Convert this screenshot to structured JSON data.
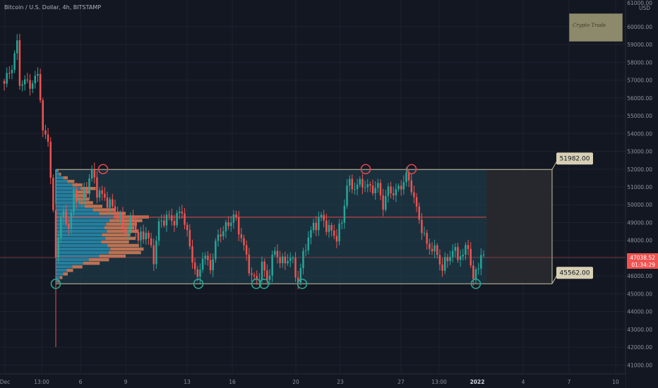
{
  "header": {
    "title": "Bitcoin / U.S. Dollar, 4h, BITSTAMP"
  },
  "logo": {
    "text": "Crypto Trade"
  },
  "colors": {
    "background": "#131722",
    "grid": "#1e2230",
    "up": "#26a69a",
    "down": "#ef5350",
    "range_box": "#c9c3a0",
    "range_fill": "#1f3a47",
    "poc_line": "#e04848",
    "circle_top": "#e0474c",
    "circle_bottom": "#2aa391",
    "price_badge": "#ef5350",
    "label_bg": "#d7d0b4",
    "axis_text": "#8e929e"
  },
  "price_axis": {
    "currency": "USD",
    "top_cut": "61000.00"
  },
  "current_price": {
    "price": "47038.52",
    "countdown": "01:34:29",
    "value": 47038.52
  },
  "range": {
    "high_label": "51982.00",
    "low_label": "45562.00",
    "high": 51982,
    "low": 45562
  },
  "chart_data": {
    "type": "candlestick",
    "ylim": [
      40500,
      61500
    ],
    "y_ticks": [
      41000,
      42000,
      43000,
      44000,
      45000,
      46000,
      47000,
      48000,
      49000,
      50000,
      51000,
      52000,
      53000,
      54000,
      55000,
      56000,
      57000,
      58000,
      59000,
      60000
    ],
    "y_tick_labels": [
      "41000.00",
      "42000.00",
      "43000.00",
      "44000.00",
      "45000.00",
      "46000.00",
      "47000.00",
      "48000.00",
      "49000.00",
      "50000.00",
      "51000.00",
      "52000.00",
      "53000.00",
      "54000.00",
      "55000.00",
      "56000.00",
      "57000.00",
      "58000.00",
      "59000.00",
      "60000.00"
    ],
    "x_tick_labels": [
      "Dec",
      "13:00",
      "6",
      "9",
      "13",
      "16",
      "20",
      "23",
      "27",
      "13:00",
      "2022",
      "4",
      "7",
      "10"
    ],
    "point_of_control": 49300,
    "swing_highs": [
      52000,
      52000,
      52000
    ],
    "swing_lows": [
      45560,
      45560,
      45560,
      45560,
      45560,
      45560
    ],
    "key_prices": [
      {
        "t": 0,
        "p": 56800
      },
      {
        "t": 3,
        "p": 57800
      },
      {
        "t": 5,
        "p": 59000
      },
      {
        "t": 6,
        "p": 56900
      },
      {
        "t": 11,
        "p": 56800
      },
      {
        "t": 13,
        "p": 57300
      },
      {
        "t": 14,
        "p": 56200
      },
      {
        "t": 15,
        "p": 54000
      },
      {
        "t": 17,
        "p": 53600
      },
      {
        "t": 18,
        "p": 51800
      },
      {
        "t": 20,
        "p": 47000
      },
      {
        "t": 22,
        "p": 49500
      },
      {
        "t": 25,
        "p": 48800
      },
      {
        "t": 27,
        "p": 50500
      },
      {
        "t": 30,
        "p": 50200
      },
      {
        "t": 32,
        "p": 51000
      },
      {
        "t": 34,
        "p": 51900
      },
      {
        "t": 36,
        "p": 50800
      },
      {
        "t": 40,
        "p": 50200
      },
      {
        "t": 44,
        "p": 49500
      },
      {
        "t": 47,
        "p": 48500
      },
      {
        "t": 50,
        "p": 49200
      },
      {
        "t": 52,
        "p": 48000
      },
      {
        "t": 55,
        "p": 48500
      },
      {
        "t": 58,
        "p": 47000
      },
      {
        "t": 60,
        "p": 48900
      },
      {
        "t": 63,
        "p": 49300
      },
      {
        "t": 66,
        "p": 49100
      },
      {
        "t": 69,
        "p": 49700
      },
      {
        "t": 71,
        "p": 48300
      },
      {
        "t": 73,
        "p": 47000
      },
      {
        "t": 75,
        "p": 45700
      },
      {
        "t": 77,
        "p": 47200
      },
      {
        "t": 80,
        "p": 46500
      },
      {
        "t": 83,
        "p": 48300
      },
      {
        "t": 86,
        "p": 48700
      },
      {
        "t": 89,
        "p": 49400
      },
      {
        "t": 92,
        "p": 48200
      },
      {
        "t": 94,
        "p": 47000
      },
      {
        "t": 96,
        "p": 46000
      },
      {
        "t": 98,
        "p": 45700
      },
      {
        "t": 100,
        "p": 46600
      },
      {
        "t": 102,
        "p": 45800
      },
      {
        "t": 105,
        "p": 47400
      },
      {
        "t": 108,
        "p": 46700
      },
      {
        "t": 111,
        "p": 47100
      },
      {
        "t": 114,
        "p": 45700
      },
      {
        "t": 117,
        "p": 47800
      },
      {
        "t": 120,
        "p": 48800
      },
      {
        "t": 123,
        "p": 49300
      },
      {
        "t": 126,
        "p": 48600
      },
      {
        "t": 129,
        "p": 48200
      },
      {
        "t": 131,
        "p": 49000
      },
      {
        "t": 133,
        "p": 51200
      },
      {
        "t": 135,
        "p": 51000
      },
      {
        "t": 139,
        "p": 51200
      },
      {
        "t": 142,
        "p": 50900
      },
      {
        "t": 145,
        "p": 51000
      },
      {
        "t": 147,
        "p": 50000
      },
      {
        "t": 149,
        "p": 50800
      },
      {
        "t": 152,
        "p": 50700
      },
      {
        "t": 154,
        "p": 51100
      },
      {
        "t": 156,
        "p": 51600
      },
      {
        "t": 158,
        "p": 51000
      },
      {
        "t": 160,
        "p": 49700
      },
      {
        "t": 162,
        "p": 48700
      },
      {
        "t": 164,
        "p": 47700
      },
      {
        "t": 166,
        "p": 47600
      },
      {
        "t": 168,
        "p": 47200
      },
      {
        "t": 170,
        "p": 46400
      },
      {
        "t": 172,
        "p": 47000
      },
      {
        "t": 174,
        "p": 47400
      },
      {
        "t": 176,
        "p": 47200
      },
      {
        "t": 178,
        "p": 47100
      },
      {
        "t": 180,
        "p": 47900
      },
      {
        "t": 181,
        "p": 46500
      },
      {
        "t": 182,
        "p": 45700
      },
      {
        "t": 184,
        "p": 46800
      },
      {
        "t": 186,
        "p": 47100
      }
    ],
    "volume_profile": [
      {
        "p": 51900,
        "v": 4
      },
      {
        "p": 51700,
        "v": 8
      },
      {
        "p": 51500,
        "v": 18
      },
      {
        "p": 51300,
        "v": 28
      },
      {
        "p": 51100,
        "v": 40
      },
      {
        "p": 50900,
        "v": 60
      },
      {
        "p": 50700,
        "v": 52
      },
      {
        "p": 50500,
        "v": 46
      },
      {
        "p": 50300,
        "v": 50
      },
      {
        "p": 50100,
        "v": 56
      },
      {
        "p": 49900,
        "v": 70
      },
      {
        "p": 49700,
        "v": 90
      },
      {
        "p": 49500,
        "v": 105
      },
      {
        "p": 49300,
        "v": 140
      },
      {
        "p": 49100,
        "v": 130
      },
      {
        "p": 48900,
        "v": 122
      },
      {
        "p": 48700,
        "v": 118
      },
      {
        "p": 48500,
        "v": 124
      },
      {
        "p": 48300,
        "v": 112
      },
      {
        "p": 48100,
        "v": 120
      },
      {
        "p": 47900,
        "v": 110
      },
      {
        "p": 47700,
        "v": 125
      },
      {
        "p": 47500,
        "v": 132
      },
      {
        "p": 47300,
        "v": 128
      },
      {
        "p": 47100,
        "v": 105
      },
      {
        "p": 46900,
        "v": 80
      },
      {
        "p": 46700,
        "v": 66
      },
      {
        "p": 46500,
        "v": 40
      },
      {
        "p": 46300,
        "v": 26
      },
      {
        "p": 46100,
        "v": 18
      },
      {
        "p": 45900,
        "v": 10
      },
      {
        "p": 45700,
        "v": 5
      }
    ]
  }
}
